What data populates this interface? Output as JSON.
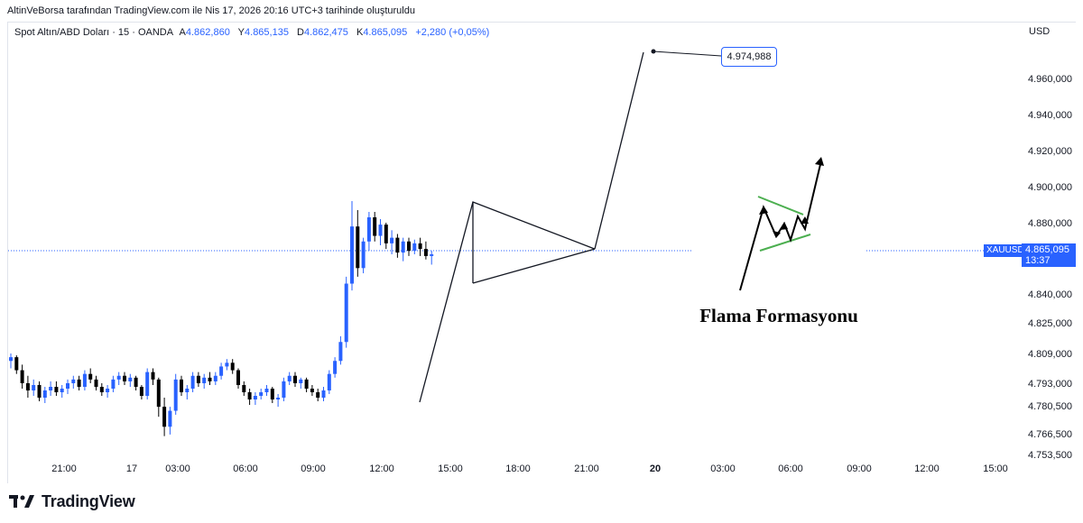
{
  "header": {
    "credit": "AltinVeBorsa tarafından TradingView.com ile Nis 17, 2026 20:16 UTC+3 tarihinde oluşturuldu"
  },
  "legend": {
    "symbol": "Spot Altın/ABD Doları · 15 · OANDA",
    "open_label": "A",
    "open": "4.862,860",
    "high_label": "Y",
    "high": "4.865,135",
    "low_label": "D",
    "low": "4.862,475",
    "close_label": "K",
    "close": "4.865,095",
    "change": "+2,280 (+0,05%)"
  },
  "axis": {
    "currency": "USD"
  },
  "current_price": {
    "symbol": "XAUUSD",
    "price": "4.865,095",
    "countdown": "13:37"
  },
  "target_callout": "4.974,988",
  "flag_inset": {
    "label": "Flama Formasyonu"
  },
  "brand": {
    "name": "TradingView"
  },
  "colors": {
    "up": "#2962ff",
    "down": "#000000",
    "accent": "#2962ff",
    "flag_lines": "#4caf50"
  },
  "chart_data": {
    "type": "candlestick",
    "y_ticks": [
      {
        "v": 4753.5,
        "label": "4.753,500"
      },
      {
        "v": 4766.5,
        "label": "4.766,500"
      },
      {
        "v": 4780.5,
        "label": "4.780,500"
      },
      {
        "v": 4793.0,
        "label": "4.793,000"
      },
      {
        "v": 4809.0,
        "label": "4.809,000"
      },
      {
        "v": 4825.0,
        "label": "4.825,000"
      },
      {
        "v": 4840.0,
        "label": "4.840,000"
      },
      {
        "v": 4880.0,
        "label": "4.880,000"
      },
      {
        "v": 4900.0,
        "label": "4.900,000"
      },
      {
        "v": 4920.0,
        "label": "4.920,000"
      },
      {
        "v": 4940.0,
        "label": "4.940,000"
      },
      {
        "v": 4960.0,
        "label": "4.960,000"
      }
    ],
    "x_ticks": [
      "21:00",
      "17",
      "03:00",
      "06:00",
      "09:00",
      "12:00",
      "15:00",
      "18:00",
      "21:00",
      "20",
      "03:00",
      "06:00",
      "09:00",
      "12:00",
      "15:00"
    ],
    "x_ticks_bold": [
      false,
      false,
      false,
      false,
      false,
      false,
      false,
      false,
      false,
      true,
      false,
      false,
      false,
      false,
      false
    ],
    "candles": [
      [
        4805,
        4809,
        4801,
        4807
      ],
      [
        4807,
        4808,
        4798,
        4800
      ],
      [
        4800,
        4803,
        4790,
        4793
      ],
      [
        4793,
        4797,
        4785,
        4789
      ],
      [
        4789,
        4795,
        4786,
        4792
      ],
      [
        4792,
        4794,
        4783,
        4785
      ],
      [
        4785,
        4791,
        4782,
        4789
      ],
      [
        4789,
        4794,
        4786,
        4791
      ],
      [
        4791,
        4794,
        4786,
        4788
      ],
      [
        4788,
        4792,
        4785,
        4790
      ],
      [
        4790,
        4795,
        4787,
        4793
      ],
      [
        4793,
        4797,
        4790,
        4795
      ],
      [
        4795,
        4797,
        4789,
        4791
      ],
      [
        4791,
        4800,
        4789,
        4798
      ],
      [
        4798,
        4801,
        4793,
        4795
      ],
      [
        4795,
        4797,
        4789,
        4791
      ],
      [
        4791,
        4793,
        4786,
        4788
      ],
      [
        4788,
        4792,
        4785,
        4790
      ],
      [
        4790,
        4797,
        4788,
        4795
      ],
      [
        4795,
        4799,
        4792,
        4797
      ],
      [
        4797,
        4799,
        4792,
        4794
      ],
      [
        4794,
        4798,
        4791,
        4796
      ],
      [
        4796,
        4797,
        4789,
        4791
      ],
      [
        4791,
        4792,
        4784,
        4786
      ],
      [
        4786,
        4801,
        4784,
        4799
      ],
      [
        4799,
        4801,
        4792,
        4795
      ],
      [
        4795,
        4796,
        4775,
        4780
      ],
      [
        4780,
        4785,
        4765,
        4770
      ],
      [
        4770,
        4780,
        4766,
        4778
      ],
      [
        4778,
        4798,
        4776,
        4795
      ],
      [
        4795,
        4797,
        4786,
        4788
      ],
      [
        4788,
        4792,
        4784,
        4790
      ],
      [
        4790,
        4799,
        4788,
        4797
      ],
      [
        4797,
        4799,
        4791,
        4793
      ],
      [
        4793,
        4798,
        4790,
        4796
      ],
      [
        4796,
        4799,
        4792,
        4794
      ],
      [
        4794,
        4799,
        4792,
        4797
      ],
      [
        4797,
        4804,
        4795,
        4802
      ],
      [
        4802,
        4806,
        4800,
        4804
      ],
      [
        4804,
        4806,
        4798,
        4800
      ],
      [
        4800,
        4801,
        4790,
        4792
      ],
      [
        4792,
        4794,
        4786,
        4788
      ],
      [
        4788,
        4790,
        4781,
        4784
      ],
      [
        4784,
        4788,
        4781,
        4786
      ],
      [
        4786,
        4790,
        4784,
        4788
      ],
      [
        4788,
        4792,
        4786,
        4790
      ],
      [
        4790,
        4791,
        4782,
        4784
      ],
      [
        4784,
        4787,
        4780,
        4785
      ],
      [
        4785,
        4796,
        4783,
        4794
      ],
      [
        4794,
        4799,
        4792,
        4797
      ],
      [
        4797,
        4799,
        4791,
        4793
      ],
      [
        4793,
        4796,
        4790,
        4795
      ],
      [
        4795,
        4796,
        4788,
        4790
      ],
      [
        4790,
        4792,
        4786,
        4788
      ],
      [
        4788,
        4790,
        4783,
        4785
      ],
      [
        4785,
        4791,
        4783,
        4789
      ],
      [
        4789,
        4800,
        4787,
        4798
      ],
      [
        4798,
        4807,
        4796,
        4805
      ],
      [
        4805,
        4818,
        4803,
        4815
      ],
      [
        4815,
        4850,
        4812,
        4846
      ],
      [
        4846,
        4892,
        4842,
        4878
      ],
      [
        4878,
        4887,
        4850,
        4855
      ],
      [
        4855,
        4872,
        4852,
        4870
      ],
      [
        4870,
        4886,
        4865,
        4883
      ],
      [
        4883,
        4886,
        4870,
        4873
      ],
      [
        4873,
        4882,
        4868,
        4879
      ],
      [
        4879,
        4880,
        4866,
        4869
      ],
      [
        4869,
        4876,
        4863,
        4872
      ],
      [
        4872,
        4874,
        4861,
        4864
      ],
      [
        4864,
        4872,
        4859,
        4870
      ],
      [
        4870,
        4872,
        4862,
        4865
      ],
      [
        4865,
        4871,
        4863,
        4869
      ],
      [
        4869,
        4872,
        4862,
        4866
      ],
      [
        4866,
        4870,
        4860,
        4862
      ],
      [
        4862,
        4865,
        4857,
        4863
      ]
    ],
    "target_value": 4974.988,
    "current_value": 4865.095
  }
}
